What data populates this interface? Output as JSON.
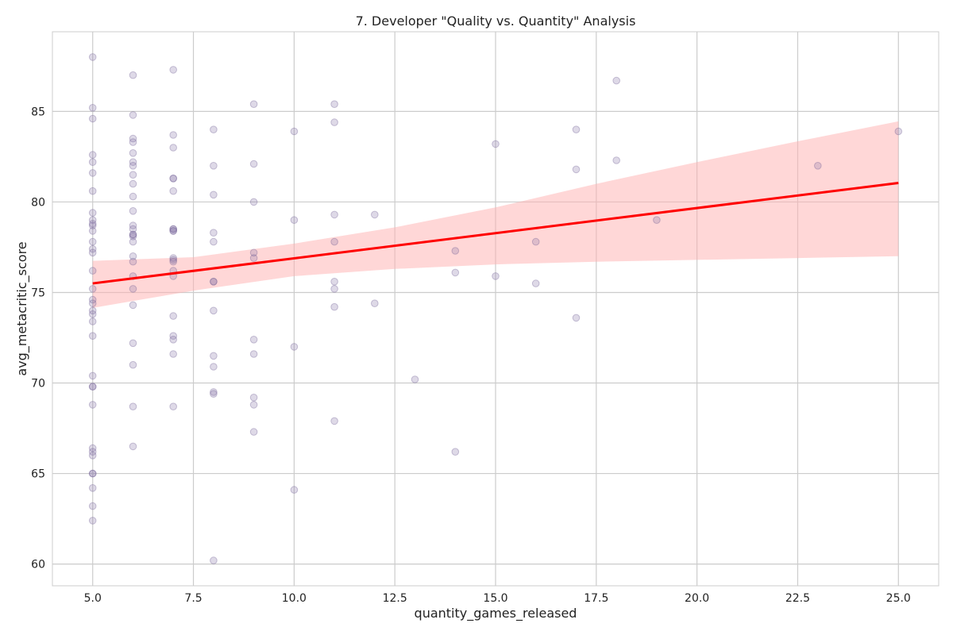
{
  "chart_data": {
    "type": "scatter",
    "title": "7. Developer \"Quality vs. Quantity\" Analysis",
    "xlabel": "quantity_games_released",
    "ylabel": "avg_metacritic_score",
    "xlim": [
      4.0,
      26.0
    ],
    "ylim": [
      58.8,
      89.4
    ],
    "x_ticks": [
      5.0,
      7.5,
      10.0,
      12.5,
      15.0,
      17.5,
      20.0,
      22.5,
      25.0
    ],
    "x_tick_labels": [
      "5.0",
      "7.5",
      "10.0",
      "12.5",
      "15.0",
      "17.5",
      "20.0",
      "22.5",
      "25.0"
    ],
    "y_ticks": [
      60,
      65,
      70,
      75,
      80,
      85
    ],
    "y_tick_labels": [
      "60",
      "65",
      "70",
      "75",
      "80",
      "85"
    ],
    "grid": true,
    "colors": {
      "points": "#8878a8",
      "regression_line": "#ff0000",
      "confidence_band": "#ffb0b0",
      "grid": "#cccccc",
      "axes_frame": "#cccccc"
    },
    "series": [
      {
        "kind": "points",
        "x": [
          5,
          5,
          5,
          5,
          5,
          5,
          5,
          5,
          5,
          5,
          5,
          5,
          5,
          5,
          5,
          5,
          5,
          5,
          5,
          5,
          5,
          5,
          5,
          5,
          5,
          5,
          5,
          5,
          5,
          5,
          5,
          5,
          5,
          5,
          5,
          6,
          6,
          6,
          6,
          6,
          6,
          6,
          6,
          6,
          6,
          6,
          6,
          6,
          6,
          6,
          6,
          6,
          6,
          6,
          6,
          6,
          6,
          6,
          6,
          6,
          6,
          7,
          7,
          7,
          7,
          7,
          7,
          7,
          7,
          7,
          7,
          7,
          7,
          7,
          7,
          7,
          7,
          7,
          7,
          7,
          7,
          8,
          8,
          8,
          8,
          8,
          8,
          8,
          8,
          8,
          8,
          8,
          8,
          8,
          9,
          9,
          9,
          9,
          9,
          9,
          9,
          9,
          9,
          9,
          10,
          10,
          10,
          10,
          11,
          11,
          11,
          11,
          11,
          11,
          11,
          11,
          12,
          12,
          13,
          14,
          14,
          14,
          15,
          15,
          16,
          16,
          17,
          17,
          17,
          18,
          18,
          19,
          23,
          25
        ],
        "y": [
          88.0,
          85.2,
          84.6,
          82.6,
          82.2,
          81.6,
          80.6,
          79.4,
          79.0,
          78.7,
          78.4,
          77.8,
          77.4,
          77.2,
          76.2,
          75.2,
          74.6,
          74.4,
          74.0,
          73.8,
          73.4,
          72.6,
          70.4,
          69.8,
          69.8,
          68.8,
          66.4,
          66.2,
          66.0,
          65.0,
          65.0,
          64.2,
          63.2,
          62.4,
          78.8,
          87.0,
          84.8,
          83.5,
          83.3,
          82.7,
          82.2,
          82.0,
          81.5,
          81.0,
          80.3,
          79.5,
          78.7,
          78.5,
          78.2,
          78.1,
          77.8,
          77.0,
          76.7,
          75.9,
          75.2,
          74.3,
          72.2,
          71.0,
          68.7,
          66.5,
          78.2,
          87.3,
          83.7,
          83.0,
          81.3,
          81.3,
          80.6,
          78.5,
          78.4,
          76.9,
          76.8,
          76.7,
          76.2,
          75.9,
          73.7,
          72.6,
          72.4,
          71.6,
          68.7,
          78.5,
          78.4,
          84.0,
          82.0,
          80.4,
          78.3,
          77.8,
          75.6,
          74.0,
          71.5,
          70.9,
          69.5,
          69.4,
          60.2,
          75.6,
          85.4,
          82.1,
          80.0,
          77.2,
          76.9,
          72.4,
          71.6,
          69.2,
          68.8,
          67.3,
          83.9,
          79.0,
          72.0,
          64.1,
          85.4,
          84.4,
          79.3,
          77.8,
          75.6,
          75.2,
          74.2,
          67.9,
          79.3,
          74.4,
          70.2,
          77.3,
          76.1,
          66.2,
          83.2,
          75.9,
          77.8,
          75.5,
          84.0,
          81.8,
          73.6,
          86.7,
          82.3,
          79.0,
          82.0,
          83.9
        ]
      },
      {
        "kind": "regression_line",
        "x": [
          5.0,
          25.0
        ],
        "y": [
          75.5,
          81.05
        ]
      },
      {
        "kind": "confidence_band",
        "x": [
          5.0,
          7.5,
          10.0,
          12.5,
          15.0,
          17.5,
          20.0,
          22.5,
          25.0
        ],
        "lower": [
          74.15,
          75.1,
          75.9,
          76.3,
          76.55,
          76.7,
          76.8,
          76.9,
          77.0
        ],
        "upper": [
          76.75,
          76.95,
          77.7,
          78.6,
          79.7,
          81.0,
          82.2,
          83.35,
          84.45
        ]
      }
    ]
  }
}
